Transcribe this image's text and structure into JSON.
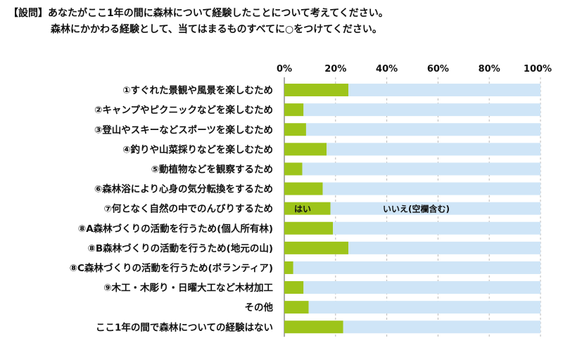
{
  "question": {
    "line1": "【設問】あなたがここ1年の間に森林について経験したことについて考えてください。",
    "line2": "森林にかかわる経験として、当てはまるものすべてに○をつけてください。"
  },
  "chart_data": {
    "type": "bar",
    "orientation": "horizontal",
    "stacked": "percent",
    "categories": [
      "①すぐれた景観や風景を楽しむため",
      "②キャンプやピクニックなどを楽しむため",
      "③登山やスキーなどスポーツを楽しむため",
      "④釣りや山菜採りなどを楽しむため",
      "⑤動植物などを観察するため",
      "⑥森林浴により心身の気分転換をするため",
      "⑦何となく自然の中でのんびりするため",
      "⑧A森林づくりの活動を行うため(個人所有林)",
      "⑧B森林づくりの活動を行うため(地元の山)",
      "⑧C森林づくりの活動を行うため(ボランティア)",
      "⑨木工・木彫り・日曜大工など木材加工",
      "その他",
      "ここ1年の間で森林についての経験はない"
    ],
    "series": [
      {
        "name": "はい",
        "color": "#9dc41a",
        "values": [
          25,
          7.5,
          8.5,
          16.5,
          7,
          15,
          18,
          19,
          25,
          3.5,
          7.5,
          9.5,
          23
        ]
      },
      {
        "name": "いいえ(空欄含む)",
        "color": "#cfe5f7",
        "values": [
          75,
          92.5,
          91.5,
          83.5,
          93,
          85,
          82,
          81,
          75,
          96.5,
          92.5,
          90.5,
          77
        ]
      }
    ],
    "xticks": [
      "0%",
      "20%",
      "40%",
      "60%",
      "80%",
      "100%"
    ],
    "xlim": [
      0,
      100
    ],
    "legend": "inline labels on the ⑦ bar"
  }
}
